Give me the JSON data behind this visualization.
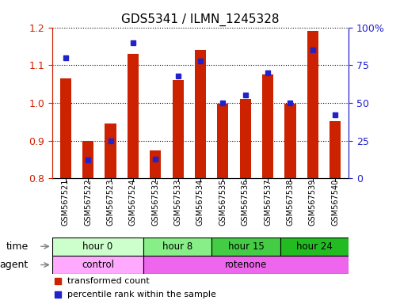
{
  "title": "GDS5341 / ILMN_1245328",
  "samples": [
    "GSM567521",
    "GSM567522",
    "GSM567523",
    "GSM567524",
    "GSM567532",
    "GSM567533",
    "GSM567534",
    "GSM567535",
    "GSM567536",
    "GSM567537",
    "GSM567538",
    "GSM567539",
    "GSM567540"
  ],
  "transformed_count": [
    1.065,
    0.9,
    0.945,
    1.13,
    0.875,
    1.06,
    1.14,
    0.998,
    1.01,
    1.075,
    0.998,
    1.19,
    0.952
  ],
  "percentile_rank": [
    80,
    12,
    25,
    90,
    13,
    68,
    78,
    50,
    55,
    70,
    50,
    85,
    42
  ],
  "ylim_left": [
    0.8,
    1.2
  ],
  "ylim_right": [
    0,
    100
  ],
  "yticks_left": [
    0.8,
    0.9,
    1.0,
    1.1,
    1.2
  ],
  "yticks_right": [
    0,
    25,
    50,
    75,
    100
  ],
  "ytick_labels_right": [
    "0",
    "25",
    "50",
    "75",
    "100%"
  ],
  "bar_color_red": "#cc2200",
  "bar_color_blue": "#2222cc",
  "time_groups": [
    {
      "label": "hour 0",
      "start": 0,
      "end": 4,
      "color": "#ccffcc"
    },
    {
      "label": "hour 8",
      "start": 4,
      "end": 7,
      "color": "#88ee88"
    },
    {
      "label": "hour 15",
      "start": 7,
      "end": 10,
      "color": "#44cc44"
    },
    {
      "label": "hour 24",
      "start": 10,
      "end": 13,
      "color": "#22bb22"
    }
  ],
  "agent_groups": [
    {
      "label": "control",
      "start": 0,
      "end": 4,
      "color": "#ffaaff"
    },
    {
      "label": "rotenone",
      "start": 4,
      "end": 13,
      "color": "#ee66ee"
    }
  ],
  "bar_width": 0.5,
  "background_color": "white",
  "xticklabel_fontsize": 7,
  "yticklabel_fontsize_left": 9,
  "yticklabel_fontsize_right": 9,
  "title_fontsize": 11,
  "legend_fontsize": 8,
  "row_label_fontsize": 9,
  "group_label_fontsize": 8.5
}
